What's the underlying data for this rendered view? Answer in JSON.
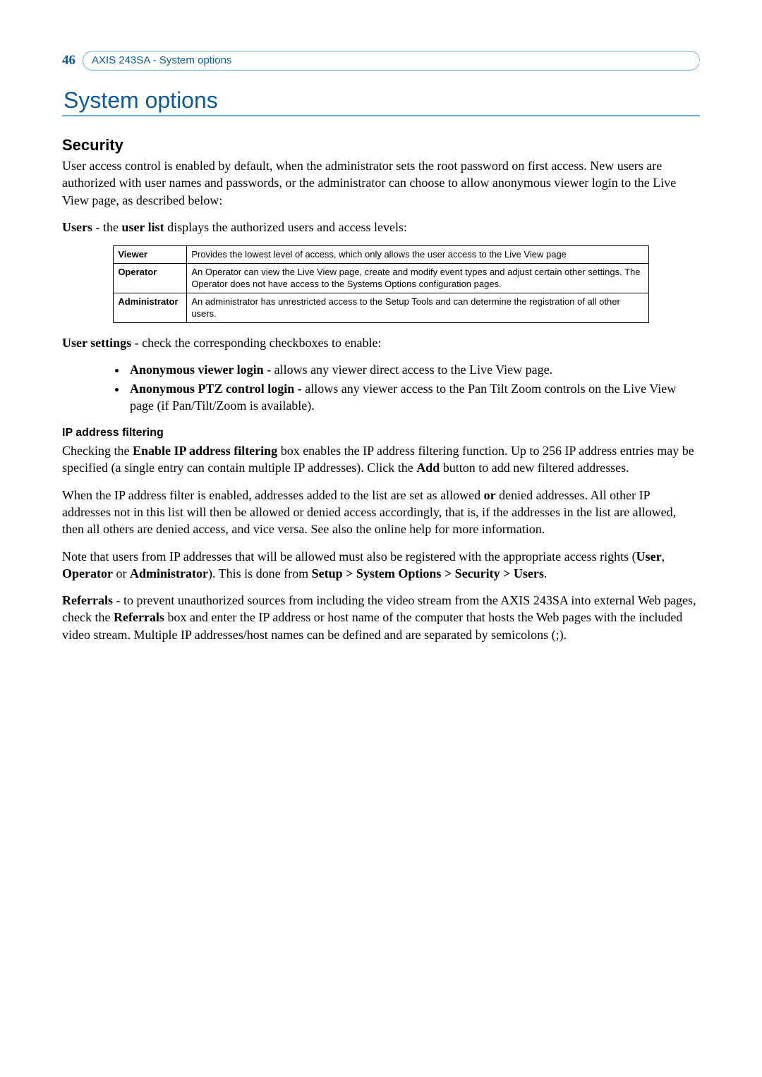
{
  "header": {
    "page_number": "46",
    "breadcrumb": "AXIS 243SA - System options"
  },
  "title": "System options",
  "security": {
    "heading": "Security",
    "intro": "User access control is enabled by default, when the administrator sets the root password on first access. New users are authorized with user names and passwords, or the administrator can choose to allow anonymous viewer login to the Live View page, as described below:",
    "users_prefix": "Users",
    "users_mid": " - the ",
    "users_bold2": "user list",
    "users_rest": " displays the authorized users and access levels:",
    "table": {
      "rows": [
        {
          "role": "Viewer",
          "desc": "Provides the lowest level of access, which only allows the user access to the Live View page"
        },
        {
          "role": "Operator",
          "desc": "An Operator can view the Live View page, create and modify event types and adjust certain other settings. The Operator does not have access to the Systems Options configuration pages."
        },
        {
          "role": "Administrator",
          "desc": "An administrator has unrestricted access to the Setup Tools and can determine the registration of all other users."
        }
      ]
    },
    "user_settings_prefix": "User settings",
    "user_settings_rest": " - check the corresponding checkboxes to enable:",
    "bullets": [
      {
        "bold": "Anonymous viewer login",
        "rest": " - allows any viewer direct access to the Live View page."
      },
      {
        "bold": "Anonymous PTZ control login -",
        "rest": " allows any viewer access to the Pan Tilt Zoom controls on the Live View page (if Pan/Tilt/Zoom is available)."
      }
    ],
    "ip_heading": "IP address filtering",
    "ip_p1_a": "Checking the ",
    "ip_p1_b": "Enable IP address filtering",
    "ip_p1_c": " box enables the IP address filtering function. Up to 256 IP address entries may be specified (a single entry can contain multiple IP addresses). Click the ",
    "ip_p1_d": "Add",
    "ip_p1_e": " button to add new filtered addresses.",
    "ip_p2_a": "When the IP address filter is enabled, addresses added to the list are set as allowed ",
    "ip_p2_b": "or",
    "ip_p2_c": " denied addresses. All other IP addresses not in this list will then be allowed or denied access accordingly, that is, if the addresses in the list are allowed, then all others are denied access, and vice versa. See also the online help for more information.",
    "ip_p3_a": "Note that users from IP addresses that will be allowed must also be registered with the appropriate access rights (",
    "ip_p3_b": "User",
    "ip_p3_c": ", ",
    "ip_p3_d": "Operator",
    "ip_p3_e": " or ",
    "ip_p3_f": "Administrator",
    "ip_p3_g": "). This is done from ",
    "ip_p3_h": "Setup > System Options > Security > Users",
    "ip_p3_i": ".",
    "ref_a": "Referrals",
    "ref_b": " - to prevent unauthorized sources from including the video stream from the AXIS 243SA into external Web pages, check the ",
    "ref_c": "Referrals",
    "ref_d": " box and enter the IP address or host name of the computer that hosts the Web pages with the included video stream. Multiple IP addresses/host names can be defined and are separated by semicolons (;)."
  }
}
